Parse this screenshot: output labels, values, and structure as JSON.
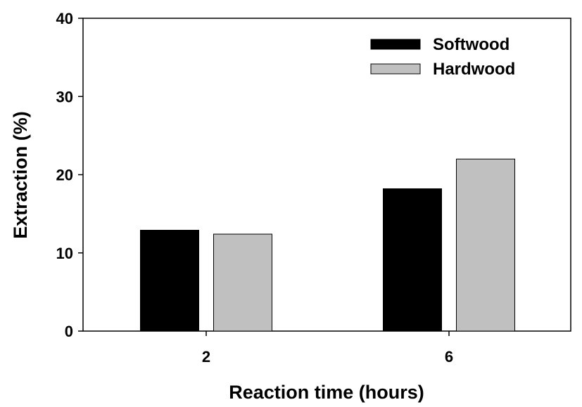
{
  "chart_data": {
    "type": "bar",
    "categories": [
      "2",
      "6"
    ],
    "series": [
      {
        "name": "Softwood",
        "color": "#000000",
        "values": [
          12.9,
          18.2
        ]
      },
      {
        "name": "Hardwood",
        "color": "#c0c0c0",
        "values": [
          12.4,
          22.0
        ]
      }
    ],
    "xlabel": "Reaction time (hours)",
    "ylabel": "Extraction (%)",
    "ylim": [
      0,
      40
    ],
    "yticks": [
      0,
      10,
      20,
      30,
      40
    ],
    "grid": false,
    "legend_position": "top-right"
  }
}
